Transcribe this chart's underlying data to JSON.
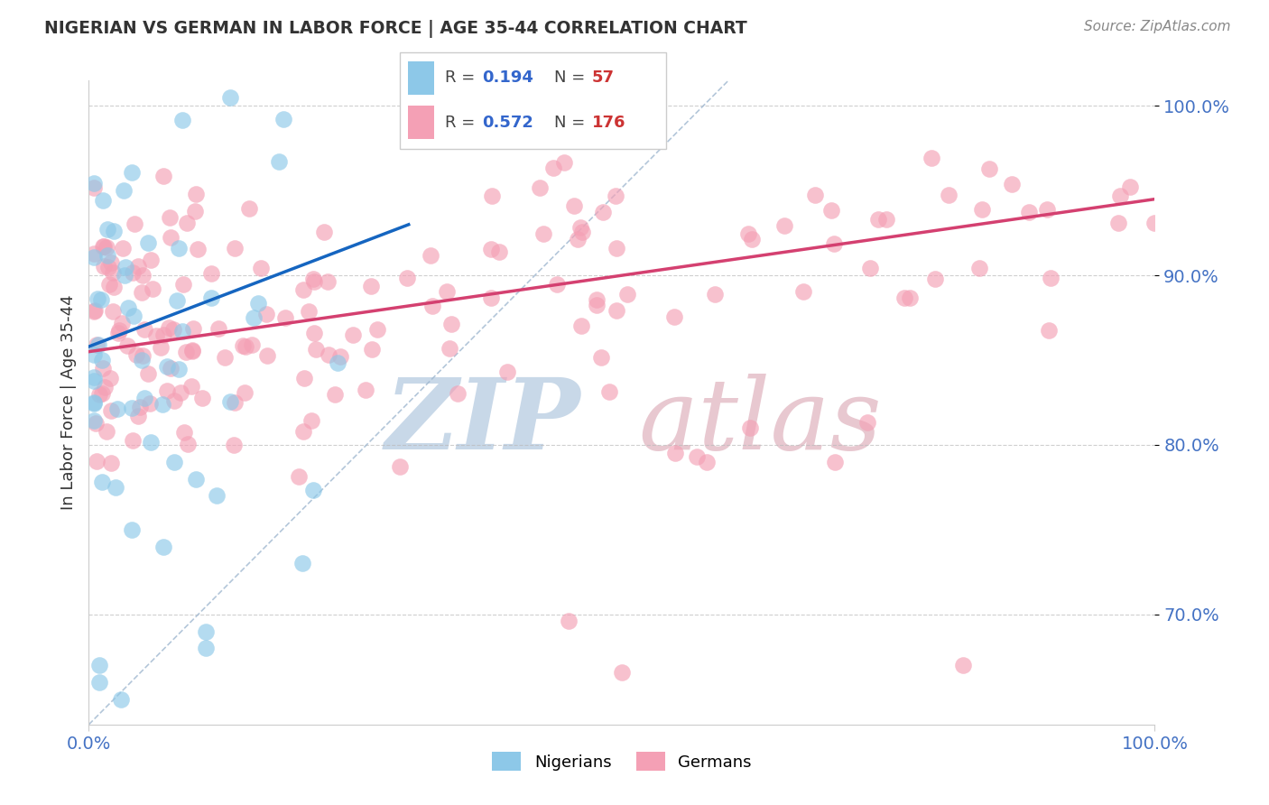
{
  "title": "NIGERIAN VS GERMAN IN LABOR FORCE | AGE 35-44 CORRELATION CHART",
  "source": "Source: ZipAtlas.com",
  "ylabel": "In Labor Force | Age 35-44",
  "xlim": [
    0.0,
    1.0
  ],
  "ylim": [
    0.635,
    1.015
  ],
  "yticks": [
    0.7,
    0.8,
    0.9,
    1.0
  ],
  "ytick_labels": [
    "70.0%",
    "80.0%",
    "90.0%",
    "100.0%"
  ],
  "xtick_labels": [
    "0.0%",
    "100.0%"
  ],
  "xtick_pos": [
    0.0,
    1.0
  ],
  "nigerian_R": 0.194,
  "nigerian_N": 57,
  "german_R": 0.572,
  "german_N": 176,
  "nigerian_color": "#8DC8E8",
  "german_color": "#F4A0B5",
  "nigerian_line_color": "#1565C0",
  "german_line_color": "#D44070",
  "background_color": "#FFFFFF",
  "grid_color": "#BBBBBB",
  "watermark_zip_color": "#C8D8E8",
  "watermark_atlas_color": "#E8C8D0",
  "legend_bg": "#FFFFFF",
  "legend_border": "#CCCCCC",
  "title_color": "#333333",
  "source_color": "#888888",
  "axis_label_color": "#4472C4",
  "ylabel_color": "#333333"
}
